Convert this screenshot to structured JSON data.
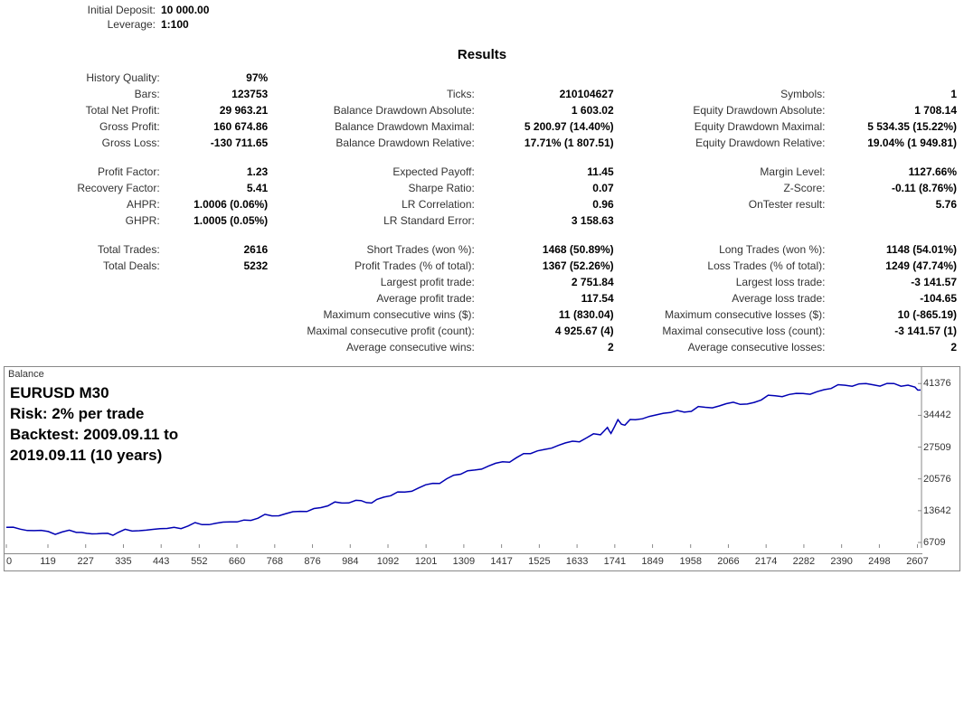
{
  "header": {
    "initial_deposit_label": "Initial Deposit:",
    "initial_deposit_value": "10 000.00",
    "leverage_label": "Leverage:",
    "leverage_value": "1:100"
  },
  "results_title": "Results",
  "rows": [
    [
      [
        "History Quality:",
        "97%"
      ],
      null,
      null
    ],
    [
      [
        "Bars:",
        "123753"
      ],
      [
        "Ticks:",
        "210104627"
      ],
      [
        "Symbols:",
        "1"
      ]
    ],
    [
      [
        "Total Net Profit:",
        "29 963.21"
      ],
      [
        "Balance Drawdown Absolute:",
        "1 603.02"
      ],
      [
        "Equity Drawdown Absolute:",
        "1 708.14"
      ]
    ],
    [
      [
        "Gross Profit:",
        "160 674.86"
      ],
      [
        "Balance Drawdown Maximal:",
        "5 200.97 (14.40%)"
      ],
      [
        "Equity Drawdown Maximal:",
        "5 534.35 (15.22%)"
      ]
    ],
    [
      [
        "Gross Loss:",
        "-130 711.65"
      ],
      [
        "Balance Drawdown Relative:",
        "17.71% (1 807.51)"
      ],
      [
        "Equity Drawdown Relative:",
        "19.04% (1 949.81)"
      ]
    ],
    "spacer",
    [
      [
        "Profit Factor:",
        "1.23"
      ],
      [
        "Expected Payoff:",
        "11.45"
      ],
      [
        "Margin Level:",
        "1127.66%"
      ]
    ],
    [
      [
        "Recovery Factor:",
        "5.41"
      ],
      [
        "Sharpe Ratio:",
        "0.07"
      ],
      [
        "Z-Score:",
        "-0.11 (8.76%)"
      ]
    ],
    [
      [
        "AHPR:",
        "1.0006 (0.06%)"
      ],
      [
        "LR Correlation:",
        "0.96"
      ],
      [
        "OnTester result:",
        "5.76"
      ]
    ],
    [
      [
        "GHPR:",
        "1.0005 (0.05%)"
      ],
      [
        "LR Standard Error:",
        "3 158.63"
      ],
      null
    ],
    "spacer",
    [
      [
        "Total Trades:",
        "2616"
      ],
      [
        "Short Trades (won %):",
        "1468 (50.89%)"
      ],
      [
        "Long Trades (won %):",
        "1148 (54.01%)"
      ]
    ],
    [
      [
        "Total Deals:",
        "5232"
      ],
      [
        "Profit Trades (% of total):",
        "1367 (52.26%)"
      ],
      [
        "Loss Trades (% of total):",
        "1249 (47.74%)"
      ]
    ],
    [
      null,
      [
        "Largest profit trade:",
        "2 751.84"
      ],
      [
        "Largest loss trade:",
        "-3 141.57"
      ]
    ],
    [
      null,
      [
        "Average profit trade:",
        "117.54"
      ],
      [
        "Average loss trade:",
        "-104.65"
      ]
    ],
    [
      null,
      [
        "Maximum consecutive wins ($):",
        "11 (830.04)"
      ],
      [
        "Maximum consecutive losses ($):",
        "10 (-865.19)"
      ]
    ],
    [
      null,
      [
        "Maximal consecutive profit (count):",
        "4 925.67 (4)"
      ],
      [
        "Maximal consecutive loss (count):",
        "-3 141.57 (1)"
      ]
    ],
    [
      null,
      [
        "Average consecutive wins:",
        "2"
      ],
      [
        "Average consecutive losses:",
        "2"
      ]
    ]
  ],
  "chart": {
    "balance_label": "Balance",
    "overlay_line1": "EURUSD M30",
    "overlay_line2": "Risk: 2% per trade",
    "overlay_line3": "Backtest: 2009.09.11 to",
    "overlay_line4": "2019.09.11 (10 years)",
    "line_color": "#0000b3",
    "background_color": "#ffffff",
    "axis_color": "#888888",
    "text_color": "#333333",
    "y_ticks": [
      41376,
      34442,
      27509,
      20576,
      13642,
      6709
    ],
    "y_min": 6709,
    "y_max": 43000,
    "x_ticks": [
      "0",
      "119",
      "227",
      "335",
      "443",
      "552",
      "660",
      "768",
      "876",
      "984",
      "1092",
      "1201",
      "1309",
      "1417",
      "1525",
      "1633",
      "1741",
      "1849",
      "1958",
      "2066",
      "2174",
      "2282",
      "2390",
      "2498",
      "2607"
    ],
    "x_min": 0,
    "x_max": 2616,
    "series": [
      [
        0,
        10000
      ],
      [
        40,
        9600
      ],
      [
        80,
        9300
      ],
      [
        120,
        9100
      ],
      [
        160,
        9000
      ],
      [
        200,
        8900
      ],
      [
        230,
        8700
      ],
      [
        260,
        8600
      ],
      [
        290,
        8700
      ],
      [
        320,
        8900
      ],
      [
        360,
        9200
      ],
      [
        400,
        9400
      ],
      [
        440,
        9700
      ],
      [
        480,
        10000
      ],
      [
        520,
        10300
      ],
      [
        560,
        10600
      ],
      [
        600,
        10900
      ],
      [
        640,
        11200
      ],
      [
        680,
        11600
      ],
      [
        720,
        12000
      ],
      [
        760,
        12500
      ],
      [
        800,
        13000
      ],
      [
        840,
        13500
      ],
      [
        880,
        14100
      ],
      [
        920,
        14700
      ],
      [
        960,
        15300
      ],
      [
        1000,
        15900
      ],
      [
        1030,
        15400
      ],
      [
        1060,
        16100
      ],
      [
        1100,
        16900
      ],
      [
        1140,
        17700
      ],
      [
        1180,
        18600
      ],
      [
        1220,
        19600
      ],
      [
        1260,
        20600
      ],
      [
        1300,
        21600
      ],
      [
        1340,
        22500
      ],
      [
        1380,
        23400
      ],
      [
        1420,
        24300
      ],
      [
        1460,
        25200
      ],
      [
        1500,
        26100
      ],
      [
        1540,
        27000
      ],
      [
        1580,
        27900
      ],
      [
        1620,
        28800
      ],
      [
        1660,
        29500
      ],
      [
        1700,
        30200
      ],
      [
        1720,
        31800
      ],
      [
        1730,
        30500
      ],
      [
        1750,
        33500
      ],
      [
        1770,
        32300
      ],
      [
        1800,
        33500
      ],
      [
        1840,
        34200
      ],
      [
        1880,
        34900
      ],
      [
        1920,
        35500
      ],
      [
        1960,
        35300
      ],
      [
        2000,
        36200
      ],
      [
        2040,
        36500
      ],
      [
        2080,
        37300
      ],
      [
        2120,
        36900
      ],
      [
        2160,
        37800
      ],
      [
        2200,
        38700
      ],
      [
        2240,
        39000
      ],
      [
        2280,
        39200
      ],
      [
        2320,
        39600
      ],
      [
        2360,
        40300
      ],
      [
        2400,
        41000
      ],
      [
        2440,
        41300
      ],
      [
        2480,
        41100
      ],
      [
        2520,
        41400
      ],
      [
        2560,
        40800
      ],
      [
        2600,
        40600
      ],
      [
        2616,
        39963
      ]
    ]
  }
}
